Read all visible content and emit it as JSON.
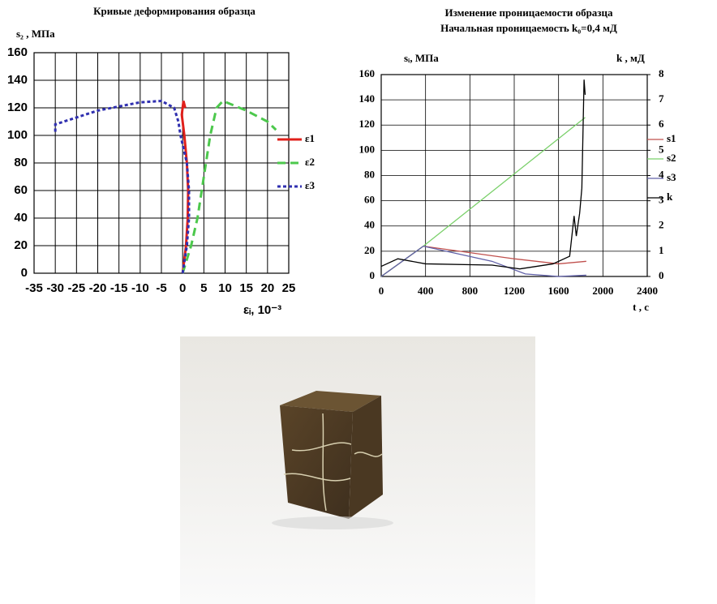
{
  "chart_data": [
    {
      "type": "line",
      "title": "Кривые деформирования образца",
      "y_label": "s₂ , МПа",
      "x_label": "εᵢ, 10⁻³",
      "xlim": [
        -35,
        25
      ],
      "xticks": [
        -35,
        -30,
        -25,
        -20,
        -15,
        -10,
        -5,
        0,
        5,
        10,
        15,
        20,
        25
      ],
      "ylim": [
        0,
        160
      ],
      "yticks": [
        0,
        20,
        40,
        60,
        80,
        100,
        120,
        140,
        160
      ],
      "grid": true,
      "legend": "right",
      "series": [
        {
          "name": "ε1",
          "color": "#e0201b",
          "dash": "solid",
          "x": [
            0,
            0.8,
            1.2,
            1.3,
            1.0,
            0.4,
            -0.2,
            0.2,
            0.6
          ],
          "values": [
            0,
            20,
            40,
            60,
            80,
            100,
            115,
            125,
            120
          ]
        },
        {
          "name": "ε2",
          "color": "#4cc84c",
          "dash": "dashed",
          "x": [
            0,
            2,
            3.5,
            4.5,
            5.5,
            6.5,
            8,
            9.5,
            15,
            20,
            22
          ],
          "values": [
            0,
            20,
            40,
            60,
            80,
            100,
            120,
            125,
            118,
            110,
            104
          ]
        },
        {
          "name": "ε3",
          "color": "#3030b0",
          "dash": "dotted",
          "x": [
            0,
            1,
            1.5,
            1.5,
            1,
            -0.5,
            -1,
            -2,
            -5,
            -10,
            -20,
            -28,
            -30,
            -30
          ],
          "values": [
            0,
            20,
            40,
            60,
            80,
            100,
            110,
            120,
            125,
            124,
            118,
            110,
            108,
            102
          ]
        }
      ]
    },
    {
      "type": "line",
      "title": "Изменение проницаемости образца",
      "subtitle": "Начальная проницаемость k₀=0,4 мД",
      "y_label": "sᵢ, МПа",
      "y2_label": "k , мД",
      "x_label": "t , с",
      "xlim": [
        0,
        2400
      ],
      "xticks": [
        0,
        400,
        800,
        1200,
        1600,
        2000,
        2400
      ],
      "ylim": [
        0,
        160
      ],
      "yticks": [
        0,
        20,
        40,
        60,
        80,
        100,
        120,
        140,
        160
      ],
      "y2lim": [
        0,
        8
      ],
      "y2ticks": [
        0,
        1,
        2,
        3,
        4,
        5,
        6,
        7,
        8
      ],
      "grid": true,
      "legend": "right",
      "series": [
        {
          "name": "s1",
          "color": "#c0504d",
          "dash": "solid",
          "x": [
            0,
            380,
            1200,
            1600,
            1850
          ],
          "values": [
            0,
            24,
            14,
            10,
            12
          ]
        },
        {
          "name": "s2",
          "color": "#7ad06a",
          "dash": "solid",
          "x": [
            0,
            380,
            1840
          ],
          "values": [
            0,
            24,
            126
          ]
        },
        {
          "name": "s3",
          "color": "#6060a8",
          "dash": "solid",
          "x": [
            0,
            380,
            1000,
            1300,
            1600,
            1850
          ],
          "values": [
            0,
            24,
            12,
            2,
            0,
            1
          ]
        },
        {
          "name": "k",
          "color": "#000000",
          "dash": "solid",
          "axis": "y2",
          "x": [
            0,
            150,
            400,
            1000,
            1250,
            1550,
            1700,
            1740,
            1760,
            1790,
            1810,
            1830,
            1840
          ],
          "values": [
            0.4,
            0.7,
            0.5,
            0.45,
            0.3,
            0.5,
            0.8,
            2.4,
            1.6,
            2.5,
            3.5,
            7.8,
            7.2
          ]
        }
      ]
    }
  ]
}
